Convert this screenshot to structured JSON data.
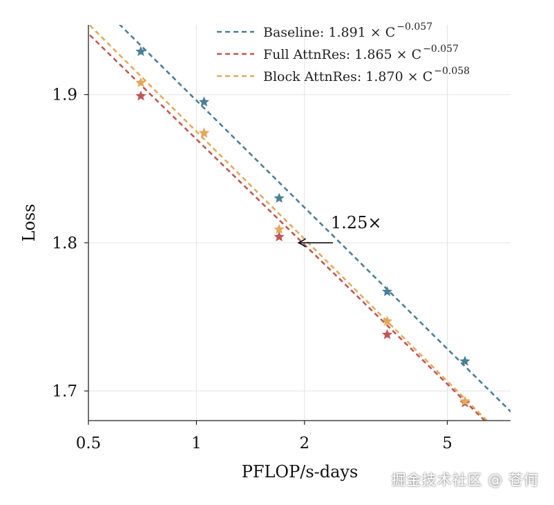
{
  "chart_data": {
    "type": "line",
    "xscale": "log",
    "xlabel": "PFLOP/s-days",
    "ylabel": "Loss",
    "xlim": [
      0.5,
      7.5
    ],
    "ylim": [
      1.68,
      1.947
    ],
    "xticks": [
      {
        "value": 0.5,
        "label": "0.5"
      },
      {
        "value": 1,
        "label": "1"
      },
      {
        "value": 2,
        "label": "2"
      },
      {
        "value": 5,
        "label": "5"
      }
    ],
    "yticks": [
      {
        "value": 1.7,
        "label": "1.7"
      },
      {
        "value": 1.8,
        "label": "1.8"
      },
      {
        "value": 1.9,
        "label": "1.9"
      }
    ],
    "grid": true,
    "legend_position": "top-right",
    "series": [
      {
        "name": "Baseline",
        "legend_label": "Baseline: 1.891 × C",
        "exponent": "−0.057",
        "color": "#4a7f96",
        "fit_a": 1.891,
        "fit_b": -0.057,
        "x": [
          0.7,
          1.05,
          1.7,
          3.4,
          5.6
        ],
        "y": [
          1.929,
          1.895,
          1.83,
          1.767,
          1.72
        ]
      },
      {
        "name": "Full AttnRes",
        "legend_label": "Full AttnRes: 1.865 × C",
        "exponent": "−0.057",
        "color": "#c05555",
        "fit_a": 1.865,
        "fit_b": -0.057,
        "x": [
          0.7,
          1.05,
          1.7,
          3.4,
          5.6
        ],
        "y": [
          1.899,
          1.874,
          1.804,
          1.738,
          1.692
        ]
      },
      {
        "name": "Block AttnRes",
        "legend_label": "Block AttnRes: 1.870 × C",
        "exponent": "−0.058",
        "color": "#e3a95a",
        "fit_a": 1.87,
        "fit_b": -0.058,
        "x": [
          0.7,
          1.05,
          1.7,
          3.4,
          5.6
        ],
        "y": [
          1.908,
          1.874,
          1.809,
          1.747,
          1.693
        ]
      }
    ],
    "annotation": {
      "text": "1.25×",
      "arrow_from": [
        2.4,
        1.8
      ],
      "arrow_to": [
        1.92,
        1.8
      ]
    }
  },
  "watermark": "掘金技术社区 @ 苍何"
}
